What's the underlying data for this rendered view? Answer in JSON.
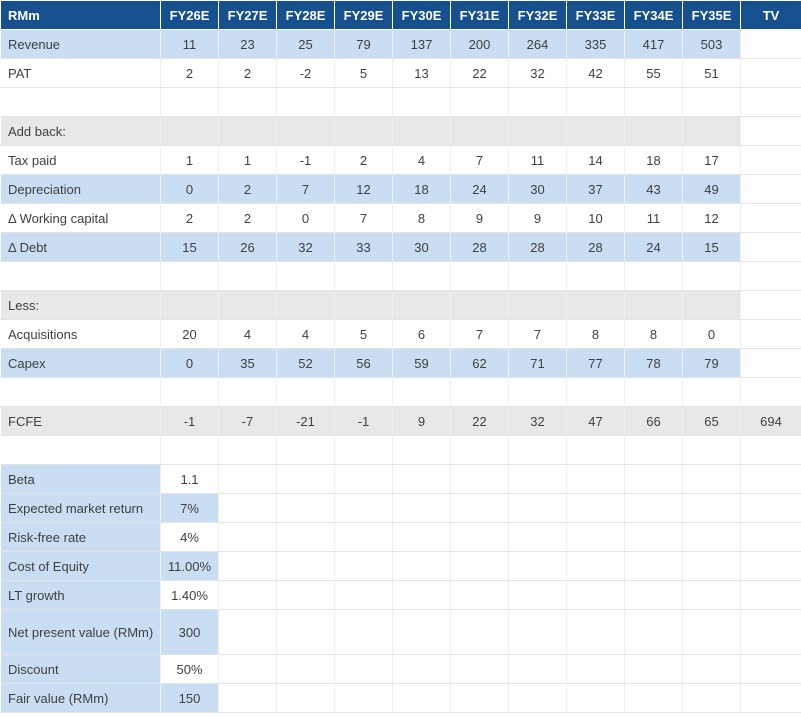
{
  "header": {
    "label": "RMm",
    "columns": [
      "FY26E",
      "FY27E",
      "FY28E",
      "FY29E",
      "FY30E",
      "FY31E",
      "FY32E",
      "FY33E",
      "FY34E",
      "FY35E",
      "TV"
    ]
  },
  "rows": {
    "revenue": {
      "label": "Revenue",
      "values": [
        "11",
        "23",
        "25",
        "79",
        "137",
        "200",
        "264",
        "335",
        "417",
        "503"
      ]
    },
    "pat": {
      "label": "PAT",
      "values": [
        "2",
        "2",
        "-2",
        "5",
        "13",
        "22",
        "32",
        "42",
        "55",
        "51"
      ]
    },
    "add_back": {
      "label": "Add back:"
    },
    "tax_paid": {
      "label": "Tax paid",
      "values": [
        "1",
        "1",
        "-1",
        "2",
        "4",
        "7",
        "11",
        "14",
        "18",
        "17"
      ]
    },
    "depreciation": {
      "label": "Depreciation",
      "values": [
        "0",
        "2",
        "7",
        "12",
        "18",
        "24",
        "30",
        "37",
        "43",
        "49"
      ]
    },
    "working_capital": {
      "label": "Δ Working capital",
      "values": [
        "2",
        "2",
        "0",
        "7",
        "8",
        "9",
        "9",
        "10",
        "11",
        "12"
      ]
    },
    "debt": {
      "label": "Δ Debt",
      "values": [
        "15",
        "26",
        "32",
        "33",
        "30",
        "28",
        "28",
        "28",
        "24",
        "15"
      ]
    },
    "less": {
      "label": "Less:"
    },
    "acquisitions": {
      "label": "Acquisitions",
      "values": [
        "20",
        "4",
        "4",
        "5",
        "6",
        "7",
        "7",
        "8",
        "8",
        "0"
      ]
    },
    "capex": {
      "label": "Capex",
      "values": [
        "0",
        "35",
        "52",
        "56",
        "59",
        "62",
        "71",
        "77",
        "78",
        "79"
      ]
    },
    "fcfe": {
      "label": "FCFE",
      "values": [
        "-1",
        "-7",
        "-21",
        "-1",
        "9",
        "22",
        "32",
        "47",
        "66",
        "65",
        "694"
      ]
    }
  },
  "assumptions": [
    {
      "label": "Beta",
      "value": "1.1"
    },
    {
      "label": "Expected market return",
      "value": "7%"
    },
    {
      "label": "Risk-free rate",
      "value": "4%"
    },
    {
      "label": "Cost of Equity",
      "value": "11.00%"
    },
    {
      "label": "LT growth",
      "value": "1.40%"
    },
    {
      "label": "Net present value (RMm)",
      "value": "300"
    },
    {
      "label": "Discount",
      "value": "50%"
    },
    {
      "label": "Fair value (RMm)",
      "value": "150"
    }
  ]
}
